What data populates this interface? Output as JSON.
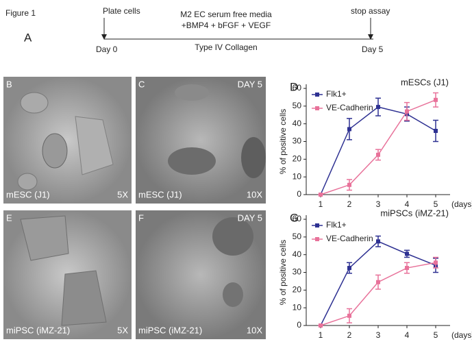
{
  "figure": {
    "label": "Figure 1",
    "panel_a": {
      "letter": "A",
      "plate": "Plate cells",
      "media_1": "M2  EC serum free media",
      "media_2": "+BMP4 + bFGF + VEGF",
      "stop": "stop assay",
      "day0": "Day 0",
      "collagen": "Type IV Collagen",
      "day5": "Day 5"
    }
  },
  "micrographs": [
    {
      "letter": "B",
      "sample": "mESC (J1)",
      "mag": "5X"
    },
    {
      "letter": "C",
      "day": "DAY 5",
      "sample": "mESC (J1)",
      "mag": "10X"
    },
    {
      "letter": "E",
      "sample": "miPSC (iMZ-21)",
      "mag": "5X"
    },
    {
      "letter": "F",
      "day": "DAY 5",
      "sample": "miPSC (iMZ-21)",
      "mag": "10X"
    }
  ],
  "chart_data": [
    {
      "type": "line",
      "panel": "D",
      "title": "mESCs (J1)",
      "ylabel": "% of positive cells",
      "xlabel": "(days)",
      "x": [
        1,
        2,
        3,
        4,
        5
      ],
      "xlim": [
        0.5,
        5.5
      ],
      "xticks": [
        1,
        2,
        3,
        4,
        5
      ],
      "ylim": [
        0,
        60
      ],
      "yticks": [
        0,
        10,
        20,
        30,
        40,
        50,
        60
      ],
      "legend": "upper left",
      "series": [
        {
          "name": "Flk1+",
          "color": "#2e3192",
          "values": [
            0,
            37,
            49.5,
            45.5,
            36
          ],
          "errors": [
            0,
            6,
            5,
            4,
            6
          ]
        },
        {
          "name": "VE-Cadherin",
          "color": "#e8729a",
          "values": [
            0,
            5.5,
            22.5,
            47,
            53.5
          ],
          "errors": [
            0,
            3,
            3,
            5,
            4
          ]
        }
      ]
    },
    {
      "type": "line",
      "panel": "G",
      "title": "miPSCs (iMZ-21)",
      "ylabel": "% of positive cells",
      "xlabel": "(days)",
      "x": [
        1,
        2,
        3,
        4,
        5
      ],
      "xlim": [
        0.5,
        5.5
      ],
      "xticks": [
        1,
        2,
        3,
        4,
        5
      ],
      "ylim": [
        0,
        60
      ],
      "yticks": [
        0,
        10,
        20,
        30,
        40,
        50,
        60
      ],
      "legend": "upper left",
      "series": [
        {
          "name": "Flk1+",
          "color": "#2e3192",
          "values": [
            0,
            32.5,
            47.5,
            40.5,
            34
          ],
          "errors": [
            0,
            3,
            3,
            2,
            4
          ]
        },
        {
          "name": "VE-Cadherin",
          "color": "#e8729a",
          "values": [
            0,
            5.5,
            24.5,
            32.5,
            35.5
          ],
          "errors": [
            0,
            4,
            4,
            3,
            3
          ]
        }
      ]
    }
  ]
}
